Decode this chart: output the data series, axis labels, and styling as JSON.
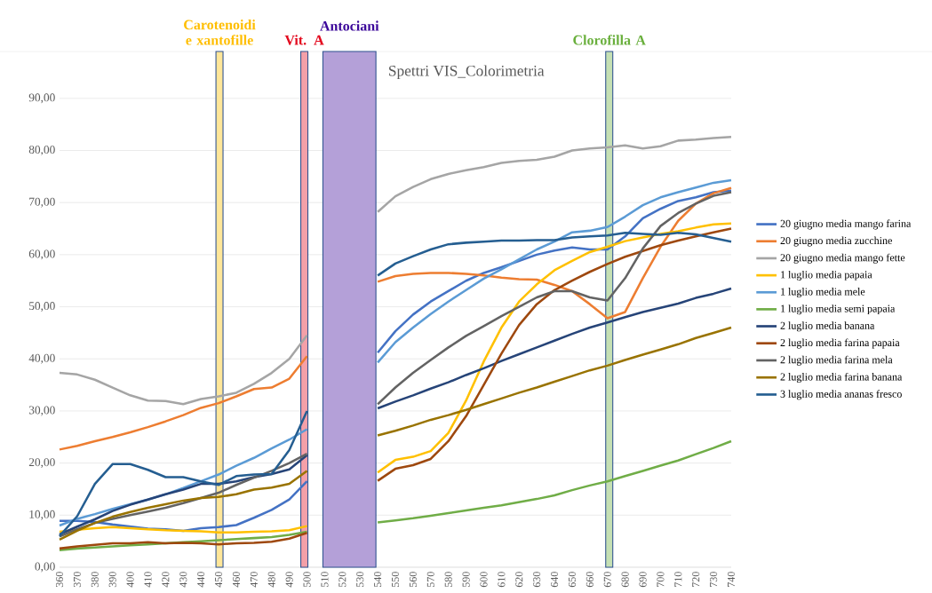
{
  "chart_data": {
    "type": "line",
    "title": "Spettri VIS_Colorimetria",
    "x": [
      360,
      370,
      380,
      390,
      400,
      410,
      420,
      430,
      440,
      450,
      460,
      470,
      480,
      490,
      500,
      510,
      520,
      530,
      540,
      550,
      560,
      570,
      580,
      590,
      600,
      610,
      620,
      630,
      640,
      650,
      660,
      670,
      680,
      690,
      700,
      710,
      720,
      730,
      740
    ],
    "xlim": [
      360,
      740
    ],
    "xticks": [
      360,
      370,
      380,
      390,
      400,
      410,
      420,
      430,
      440,
      450,
      460,
      470,
      480,
      490,
      500,
      510,
      520,
      530,
      540,
      550,
      560,
      570,
      580,
      590,
      600,
      610,
      620,
      630,
      640,
      650,
      660,
      670,
      680,
      690,
      700,
      710,
      720,
      730,
      740
    ],
    "ylim": [
      0,
      99
    ],
    "yticks": [
      {
        "value": 0,
        "label": "0,00"
      },
      {
        "value": 10,
        "label": "10,00"
      },
      {
        "value": 20,
        "label": "20,00"
      },
      {
        "value": 30,
        "label": "30,00"
      },
      {
        "value": 40,
        "label": "40,00"
      },
      {
        "value": 50,
        "label": "50,00"
      },
      {
        "value": 60,
        "label": "60,00"
      },
      {
        "value": 70,
        "label": "70,00"
      },
      {
        "value": 80,
        "label": "80,00"
      },
      {
        "value": 90,
        "label": "90,00"
      }
    ],
    "grid": "y",
    "legend": "right",
    "marker": "none",
    "line_style": "solid",
    "bands": [
      {
        "axis": "x",
        "from": 448.5,
        "to": 452.5,
        "label": "Carotenoidi e xantofille",
        "color": "#ffe699"
      },
      {
        "axis": "x",
        "from": 496.5,
        "to": 500.5,
        "label": "Vit. A",
        "color": "#f4a0a8"
      },
      {
        "axis": "x",
        "from": 509,
        "to": 539,
        "label": "Antociani",
        "color": "#b4a0d8"
      },
      {
        "axis": "x",
        "from": 669,
        "to": 673,
        "label": "Clorofilla A",
        "color": "#c5e0b4"
      }
    ],
    "series": [
      {
        "name": "20 giugno media mango farina",
        "color": "#4472c4",
        "values": [
          8.9,
          8.9,
          8.7,
          8.2,
          7.8,
          7.4,
          7.3,
          7.0,
          7.5,
          7.7,
          8.1,
          9.5,
          11.0,
          13.0,
          16.5,
          null,
          null,
          null,
          41.2,
          45.3,
          48.5,
          51.0,
          53.0,
          55.0,
          56.5,
          57.6,
          58.8,
          60.0,
          60.8,
          61.4,
          61.0,
          61.0,
          63.5,
          67.0,
          68.8,
          70.3,
          71.0,
          72.0,
          72.3
        ]
      },
      {
        "name": "20 giugno media zucchine",
        "color": "#ed7d31",
        "values": [
          22.6,
          23.3,
          24.2,
          25.0,
          25.9,
          26.9,
          28.0,
          29.2,
          30.6,
          31.5,
          32.8,
          34.2,
          34.5,
          36.2,
          40.5,
          null,
          null,
          null,
          54.8,
          55.9,
          56.3,
          56.5,
          56.5,
          56.3,
          56.0,
          55.6,
          55.3,
          55.2,
          54.2,
          53.0,
          50.5,
          47.8,
          49.0,
          55.5,
          61.5,
          66.5,
          69.8,
          71.8,
          72.8
        ]
      },
      {
        "name": "20 giugno media mango fette",
        "color": "#a5a5a5",
        "values": [
          37.3,
          37.0,
          36.0,
          34.5,
          33.0,
          32.0,
          31.9,
          31.3,
          32.3,
          32.8,
          33.5,
          35.2,
          37.3,
          40.0,
          44.5,
          null,
          null,
          null,
          68.2,
          71.2,
          73.0,
          74.5,
          75.5,
          76.2,
          76.8,
          77.6,
          78.0,
          78.2,
          78.8,
          80.0,
          80.4,
          80.6,
          81.0,
          80.4,
          80.8,
          81.9,
          82.1,
          82.4,
          82.6
        ]
      },
      {
        "name": "1 luglio media papaia",
        "color": "#ffc000",
        "values": [
          6.8,
          7.2,
          7.5,
          7.7,
          7.5,
          7.3,
          7.1,
          7.0,
          6.9,
          6.7,
          6.7,
          6.8,
          6.9,
          7.1,
          7.9,
          null,
          null,
          null,
          18.2,
          20.6,
          21.2,
          22.3,
          25.8,
          32.0,
          39.5,
          46.0,
          51.0,
          54.3,
          57.0,
          58.8,
          60.5,
          61.5,
          62.6,
          63.3,
          64.0,
          64.5,
          65.2,
          65.8,
          66.0
        ]
      },
      {
        "name": "1 luglio media mele",
        "color": "#5b9bd5",
        "values": [
          8.0,
          9.3,
          10.2,
          11.2,
          12.1,
          13.0,
          14.0,
          15.2,
          16.5,
          17.8,
          19.5,
          21.0,
          22.8,
          24.5,
          26.5,
          null,
          null,
          null,
          39.3,
          43.2,
          46.0,
          48.6,
          51.0,
          53.2,
          55.4,
          57.2,
          59.1,
          61.0,
          62.5,
          64.3,
          64.6,
          65.3,
          67.3,
          69.5,
          71.0,
          72.0,
          72.9,
          73.8,
          74.3
        ]
      },
      {
        "name": "1 luglio media semi papaia",
        "color": "#70ad47",
        "values": [
          3.3,
          3.6,
          3.8,
          4.0,
          4.2,
          4.4,
          4.6,
          4.8,
          5.0,
          5.2,
          5.4,
          5.6,
          5.8,
          6.2,
          6.8,
          null,
          null,
          null,
          8.6,
          9.0,
          9.4,
          9.9,
          10.4,
          10.9,
          11.4,
          11.9,
          12.5,
          13.1,
          13.8,
          14.8,
          15.7,
          16.5,
          17.5,
          18.5,
          19.5,
          20.5,
          21.7,
          22.9,
          24.2
        ]
      },
      {
        "name": "2 luglio media banana",
        "color": "#264478",
        "values": [
          6.3,
          7.8,
          9.2,
          10.8,
          12.0,
          13.0,
          14.0,
          14.9,
          16.0,
          16.0,
          16.5,
          17.3,
          17.9,
          18.8,
          21.5,
          null,
          null,
          null,
          30.5,
          31.8,
          33.0,
          34.3,
          35.5,
          36.9,
          38.2,
          39.6,
          40.9,
          42.2,
          43.5,
          44.8,
          46.0,
          47.0,
          48.0,
          49.0,
          49.8,
          50.6,
          51.7,
          52.5,
          53.5
        ]
      },
      {
        "name": "2 luglio media farina papaia",
        "color": "#9e480e",
        "values": [
          3.6,
          4.0,
          4.3,
          4.6,
          4.6,
          4.8,
          4.6,
          4.7,
          4.6,
          4.4,
          4.6,
          4.7,
          4.9,
          5.5,
          6.6,
          null,
          null,
          null,
          16.6,
          18.9,
          19.6,
          20.8,
          24.2,
          29.0,
          35.0,
          41.0,
          46.5,
          50.5,
          53.2,
          55.0,
          56.7,
          58.2,
          59.6,
          60.7,
          61.8,
          62.7,
          63.5,
          64.3,
          65.0
        ]
      },
      {
        "name": "2 luglio media farina mela",
        "color": "#636363",
        "values": [
          5.9,
          7.3,
          8.5,
          9.3,
          10.0,
          10.7,
          11.4,
          12.3,
          13.3,
          14.3,
          15.8,
          17.2,
          18.5,
          20.0,
          21.8,
          null,
          null,
          null,
          31.3,
          34.5,
          37.3,
          39.8,
          42.2,
          44.4,
          46.3,
          48.2,
          50.0,
          51.8,
          53.0,
          53.0,
          51.8,
          51.2,
          55.5,
          61.2,
          65.5,
          68.0,
          69.8,
          71.3,
          72.0
        ]
      },
      {
        "name": "2 luglio media farina banana",
        "color": "#997300",
        "values": [
          5.3,
          7.0,
          8.5,
          9.7,
          10.6,
          11.4,
          12.1,
          12.8,
          13.3,
          13.5,
          14.0,
          14.9,
          15.3,
          16.0,
          18.5,
          null,
          null,
          null,
          25.3,
          26.2,
          27.2,
          28.3,
          29.2,
          30.2,
          31.3,
          32.4,
          33.5,
          34.5,
          35.6,
          36.7,
          37.8,
          38.7,
          39.8,
          40.8,
          41.8,
          42.8,
          44.0,
          45.0,
          46.0
        ]
      },
      {
        "name": "3 luglio media ananas fresco",
        "color": "#255e91",
        "values": [
          6.0,
          9.8,
          16.0,
          19.8,
          19.8,
          18.7,
          17.3,
          17.3,
          16.5,
          15.8,
          17.5,
          17.8,
          17.9,
          22.5,
          30.0,
          null,
          null,
          null,
          56.0,
          58.3,
          59.7,
          61.0,
          62.0,
          62.3,
          62.5,
          62.7,
          62.7,
          62.8,
          62.8,
          63.3,
          63.5,
          63.7,
          64.2,
          64.0,
          63.8,
          64.2,
          63.9,
          63.2,
          62.5
        ]
      }
    ]
  }
}
